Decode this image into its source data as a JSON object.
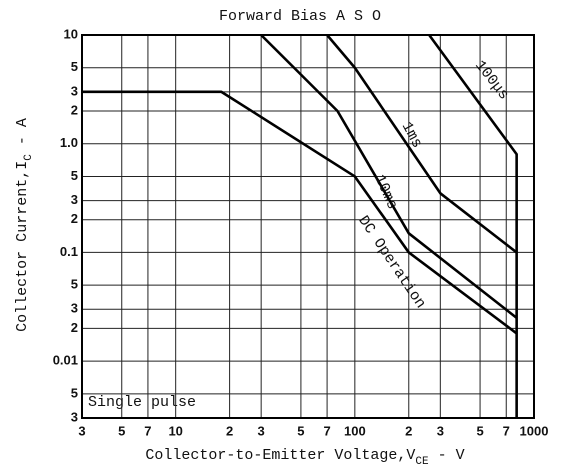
{
  "chart_data": {
    "type": "line",
    "title": "Forward Bias A S O",
    "annotation": "Single pulse",
    "xlabel": {
      "main": "Collector-to-Emitter Voltage,V",
      "sub": "CE",
      "tail": " - V"
    },
    "ylabel": {
      "main": "Collector Current,I",
      "sub": "C",
      "tail": " - A"
    },
    "xlog": true,
    "ylog": true,
    "grid": true,
    "color": "#000000",
    "xlim": [
      3,
      1000
    ],
    "ylim": [
      0.003,
      10
    ],
    "xticks": [
      3,
      5,
      7,
      10,
      {
        "value": 20,
        "label": "2"
      },
      {
        "value": 30,
        "label": "3"
      },
      {
        "value": 50,
        "label": "5"
      },
      {
        "value": 70,
        "label": "7"
      },
      100,
      {
        "value": 200,
        "label": "2"
      },
      {
        "value": 300,
        "label": "3"
      },
      {
        "value": 500,
        "label": "5"
      },
      {
        "value": 700,
        "label": "7"
      },
      1000
    ],
    "yticks": [
      10,
      5,
      3,
      2,
      {
        "value": 1,
        "label": "1.0"
      },
      {
        "value": 0.5,
        "label": "5"
      },
      {
        "value": 0.3,
        "label": "3"
      },
      {
        "value": 0.2,
        "label": "2"
      },
      0.1,
      {
        "value": 0.05,
        "label": "5"
      },
      {
        "value": 0.03,
        "label": "3"
      },
      {
        "value": 0.02,
        "label": "2"
      },
      0.01,
      {
        "value": 0.005,
        "label": "5"
      },
      {
        "value": 0.003,
        "label": "3"
      }
    ],
    "series": [
      {
        "name": "100μs",
        "x": [
          260,
          800,
          800
        ],
        "values": [
          10,
          0.8,
          0.003
        ]
      },
      {
        "name": "1ms",
        "x": [
          70,
          100,
          300,
          800
        ],
        "values": [
          10,
          5,
          0.35,
          0.1
        ]
      },
      {
        "name": "10ms",
        "x": [
          30,
          80,
          200,
          800
        ],
        "values": [
          10,
          2,
          0.15,
          0.025
        ]
      },
      {
        "name": "DC Operation",
        "x": [
          3,
          18,
          100,
          200,
          800
        ],
        "values": [
          3,
          3,
          0.5,
          0.1,
          0.018
        ]
      }
    ]
  }
}
